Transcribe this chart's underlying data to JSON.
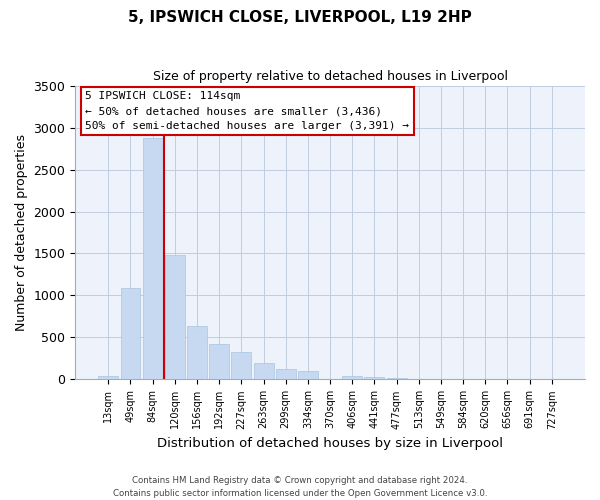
{
  "title": "5, IPSWICH CLOSE, LIVERPOOL, L19 2HP",
  "subtitle": "Size of property relative to detached houses in Liverpool",
  "xlabel": "Distribution of detached houses by size in Liverpool",
  "ylabel": "Number of detached properties",
  "bar_labels": [
    "13sqm",
    "49sqm",
    "84sqm",
    "120sqm",
    "156sqm",
    "192sqm",
    "227sqm",
    "263sqm",
    "299sqm",
    "334sqm",
    "370sqm",
    "406sqm",
    "441sqm",
    "477sqm",
    "513sqm",
    "549sqm",
    "584sqm",
    "620sqm",
    "656sqm",
    "691sqm",
    "727sqm"
  ],
  "bar_values": [
    40,
    1090,
    2870,
    1480,
    635,
    420,
    330,
    195,
    130,
    100,
    0,
    40,
    30,
    20,
    0,
    0,
    0,
    0,
    0,
    0,
    0
  ],
  "bar_color": "#c6d9f0",
  "bar_edge_color": "#a8c4e0",
  "vline_color": "#cc0000",
  "vline_position": 2.5,
  "ylim": [
    0,
    3500
  ],
  "yticks": [
    0,
    500,
    1000,
    1500,
    2000,
    2500,
    3000,
    3500
  ],
  "annotation_title": "5 IPSWICH CLOSE: 114sqm",
  "annotation_line1": "← 50% of detached houses are smaller (3,436)",
  "annotation_line2": "50% of semi-detached houses are larger (3,391) →",
  "annotation_box_color": "white",
  "annotation_box_edge": "#cc0000",
  "footer_line1": "Contains HM Land Registry data © Crown copyright and database right 2024.",
  "footer_line2": "Contains public sector information licensed under the Open Government Licence v3.0.",
  "bg_color": "white",
  "plot_bg_color": "#eef3fb",
  "grid_color": "#c0cce0"
}
